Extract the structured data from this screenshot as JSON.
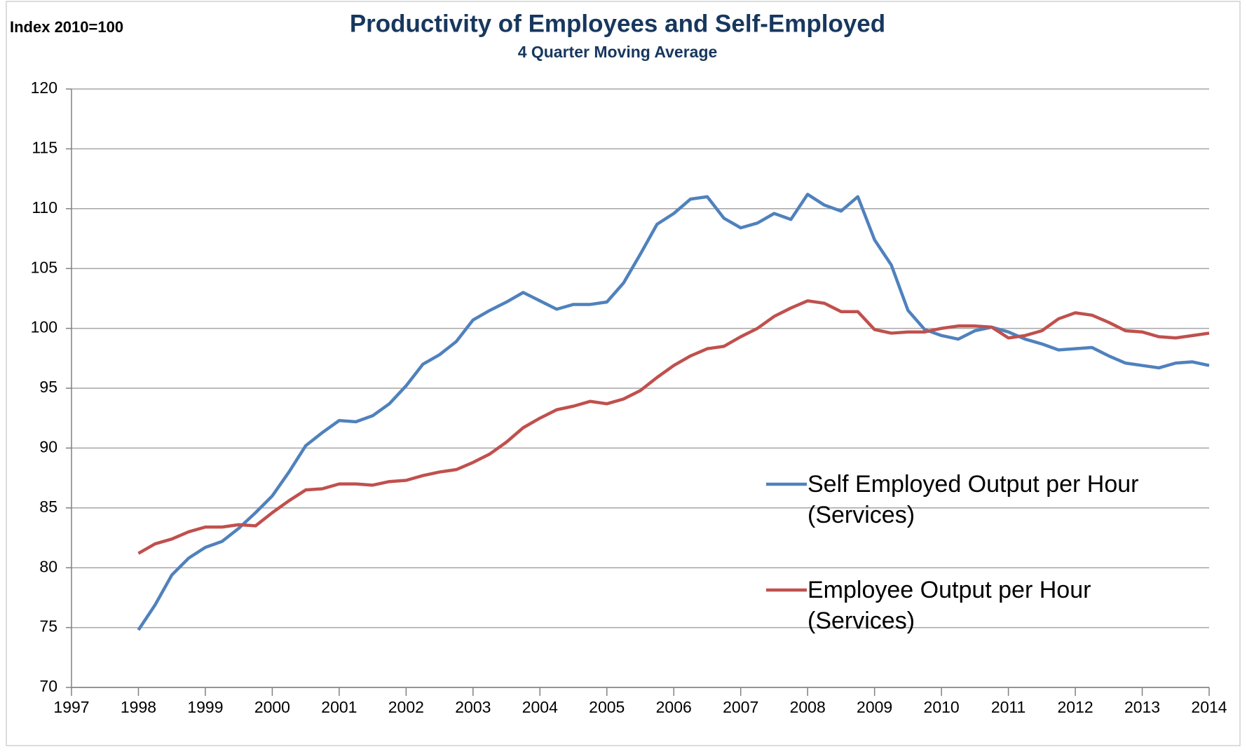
{
  "chart_data": {
    "type": "line",
    "title": "Productivity of Employees and Self-Employed",
    "subtitle": "4 Quarter Moving Average",
    "y_label": "Index 2010=100",
    "x": [
      1998,
      1998.25,
      1998.5,
      1998.75,
      1999,
      1999.25,
      1999.5,
      1999.75,
      2000,
      2000.25,
      2000.5,
      2000.75,
      2001,
      2001.25,
      2001.5,
      2001.75,
      2002,
      2002.25,
      2002.5,
      2002.75,
      2003,
      2003.25,
      2003.5,
      2003.75,
      2004,
      2004.25,
      2004.5,
      2004.75,
      2005,
      2005.25,
      2005.5,
      2005.75,
      2006,
      2006.25,
      2006.5,
      2006.75,
      2007,
      2007.25,
      2007.5,
      2007.75,
      2008,
      2008.25,
      2008.5,
      2008.75,
      2009,
      2009.25,
      2009.5,
      2009.75,
      2010,
      2010.25,
      2010.5,
      2010.75,
      2011,
      2011.25,
      2011.5,
      2011.75,
      2012,
      2012.25,
      2012.5,
      2012.75,
      2013,
      2013.25,
      2013.5,
      2013.75,
      2014
    ],
    "series": [
      {
        "name": "Self Employed Output per Hour (Services)",
        "color": "#4f81bd",
        "values": [
          74.8,
          76.9,
          79.4,
          80.8,
          81.7,
          82.2,
          83.3,
          84.6,
          86.0,
          88.0,
          90.2,
          91.3,
          92.3,
          92.2,
          92.7,
          93.7,
          95.2,
          97.0,
          97.8,
          98.9,
          100.7,
          101.5,
          102.2,
          103.0,
          102.3,
          101.6,
          102.0,
          102.0,
          102.2,
          103.8,
          106.2,
          108.7,
          109.6,
          110.8,
          111.0,
          109.2,
          108.4,
          108.8,
          109.6,
          109.1,
          111.2,
          110.3,
          109.8,
          111.0,
          107.4,
          105.3,
          101.5,
          99.9,
          99.4,
          99.1,
          99.8,
          100.1,
          99.7,
          99.1,
          98.7,
          98.2,
          98.3,
          98.4,
          97.7,
          97.1,
          96.9,
          96.7,
          97.1,
          97.2,
          96.9
        ]
      },
      {
        "name": "Employee Output per Hour (Services)",
        "color": "#c0504d",
        "values": [
          81.2,
          82.0,
          82.4,
          83.0,
          83.4,
          83.4,
          83.6,
          83.5,
          84.6,
          85.6,
          86.5,
          86.6,
          87.0,
          87.0,
          86.9,
          87.2,
          87.3,
          87.7,
          88.0,
          88.2,
          88.8,
          89.5,
          90.5,
          91.7,
          92.5,
          93.2,
          93.5,
          93.9,
          93.7,
          94.1,
          94.8,
          95.9,
          96.9,
          97.7,
          98.3,
          98.5,
          99.3,
          100.0,
          101.0,
          101.7,
          102.3,
          102.1,
          101.4,
          101.4,
          99.9,
          99.6,
          99.7,
          99.7,
          100.0,
          100.2,
          100.2,
          100.1,
          99.2,
          99.4,
          99.8,
          100.8,
          101.3,
          101.1,
          100.5,
          99.8,
          99.7,
          99.3,
          99.2,
          99.4,
          99.6
        ]
      }
    ],
    "xlim": [
      1997,
      2014
    ],
    "xticks": [
      1997,
      1998,
      1999,
      2000,
      2001,
      2002,
      2003,
      2004,
      2005,
      2006,
      2007,
      2008,
      2009,
      2010,
      2011,
      2012,
      2013,
      2014
    ],
    "ylim": [
      70,
      120
    ],
    "yticks": [
      70,
      75,
      80,
      85,
      90,
      95,
      100,
      105,
      110,
      115,
      120
    ],
    "grid": true
  }
}
